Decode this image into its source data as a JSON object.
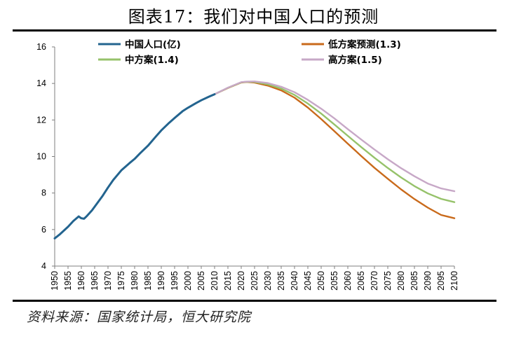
{
  "page_title": "图表17：我们对中国人口的预测",
  "source_note": "资料来源：国家统计局，恒大研究院",
  "colors": {
    "history": "#23648f",
    "low": "#c96a1b",
    "medium": "#96c26a",
    "high": "#c7a8c7"
  },
  "chart_data": {
    "type": "line",
    "xlim": [
      1950,
      2100
    ],
    "ylim": [
      4,
      16
    ],
    "yticks": [
      4,
      6,
      8,
      10,
      12,
      14,
      16
    ],
    "xticks": [
      "1950",
      "1955",
      "1960",
      "1965",
      "1970",
      "1975",
      "1980",
      "1985",
      "1990",
      "1995",
      "2000",
      "2005",
      "2010",
      "2015",
      "2020",
      "2025",
      "2030",
      "2035",
      "2040",
      "2045",
      "2050",
      "2055",
      "2060",
      "2065",
      "2070",
      "2075",
      "2080",
      "2085",
      "2090",
      "2095",
      "2100"
    ],
    "grid": false,
    "legend_position": "top",
    "series": [
      {
        "key": "history",
        "name": "中国人口(亿)",
        "x": [
          1950,
          1952,
          1955,
          1957,
          1959,
          1960,
          1961,
          1962,
          1964,
          1966,
          1968,
          1970,
          1972,
          1975,
          1978,
          1980,
          1982,
          1985,
          1988,
          1990,
          1993,
          1995,
          1998,
          2000,
          2003,
          2005,
          2008,
          2010
        ],
        "values": [
          5.52,
          5.75,
          6.15,
          6.47,
          6.72,
          6.62,
          6.59,
          6.73,
          7.05,
          7.45,
          7.85,
          8.3,
          8.72,
          9.24,
          9.63,
          9.87,
          10.17,
          10.59,
          11.1,
          11.43,
          11.85,
          12.11,
          12.48,
          12.67,
          12.92,
          13.08,
          13.28,
          13.41
        ]
      },
      {
        "key": "low",
        "name": "低方案预测(1.3)",
        "x": [
          2010,
          2015,
          2020,
          2022,
          2025,
          2030,
          2035,
          2040,
          2045,
          2050,
          2055,
          2060,
          2065,
          2070,
          2075,
          2080,
          2085,
          2090,
          2095,
          2100
        ],
        "values": [
          13.41,
          13.75,
          14.05,
          14.08,
          14.05,
          13.88,
          13.62,
          13.22,
          12.68,
          12.05,
          11.38,
          10.7,
          10.03,
          9.38,
          8.78,
          8.2,
          7.67,
          7.2,
          6.8,
          6.62
        ]
      },
      {
        "key": "medium",
        "name": "中方案(1.4)",
        "x": [
          2010,
          2015,
          2020,
          2022,
          2025,
          2030,
          2035,
          2040,
          2045,
          2050,
          2055,
          2060,
          2065,
          2070,
          2075,
          2080,
          2085,
          2090,
          2095,
          2100
        ],
        "values": [
          13.41,
          13.76,
          14.06,
          14.09,
          14.08,
          13.95,
          13.72,
          13.37,
          12.9,
          12.35,
          11.75,
          11.13,
          10.52,
          9.93,
          9.37,
          8.85,
          8.38,
          7.98,
          7.68,
          7.5
        ]
      },
      {
        "key": "high",
        "name": "高方案(1.5)",
        "x": [
          2010,
          2015,
          2020,
          2022,
          2025,
          2030,
          2035,
          2040,
          2045,
          2050,
          2055,
          2060,
          2065,
          2070,
          2075,
          2080,
          2085,
          2090,
          2095,
          2100
        ],
        "values": [
          13.41,
          13.77,
          14.07,
          14.1,
          14.11,
          14.02,
          13.82,
          13.52,
          13.1,
          12.62,
          12.08,
          11.5,
          10.93,
          10.38,
          9.85,
          9.36,
          8.92,
          8.52,
          8.25,
          8.1
        ]
      }
    ]
  }
}
